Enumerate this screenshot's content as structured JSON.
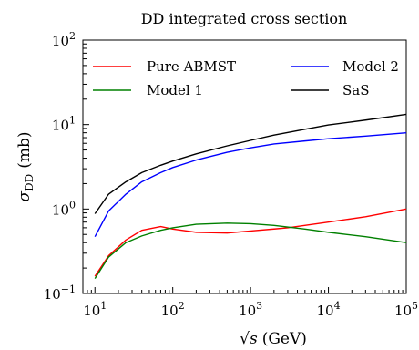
{
  "chart_data": {
    "type": "line",
    "title": "DD integrated cross section",
    "xlabel_base": "√s",
    "xlabel_unit": "(GeV)",
    "ylabel_symbol": "σ",
    "ylabel_sub": "DD",
    "ylabel_unit": "(mb)",
    "xscale": "log",
    "yscale": "log",
    "xlim": [
      7,
      100000
    ],
    "ylim": [
      0.1,
      100
    ],
    "xticks": [
      {
        "value": 10,
        "base": "10",
        "exp": "1"
      },
      {
        "value": 100,
        "base": "10",
        "exp": "2"
      },
      {
        "value": 1000,
        "base": "10",
        "exp": "3"
      },
      {
        "value": 10000,
        "base": "10",
        "exp": "4"
      },
      {
        "value": 100000,
        "base": "10",
        "exp": "5"
      }
    ],
    "yticks": [
      {
        "value": 0.1,
        "base": "10",
        "exp": "−1"
      },
      {
        "value": 1,
        "base": "10",
        "exp": "0"
      },
      {
        "value": 10,
        "base": "10",
        "exp": "1"
      },
      {
        "value": 100,
        "base": "10",
        "exp": "2"
      }
    ],
    "grid": false,
    "legend_position": "top",
    "legend_columns": 2,
    "series": [
      {
        "name": "Pure ABMST",
        "color": "#ff0000",
        "x": [
          10,
          15,
          25,
          40,
          70,
          100,
          200,
          500,
          1000,
          2000,
          3000,
          10000,
          30000,
          100000
        ],
        "y": [
          0.16,
          0.28,
          0.43,
          0.56,
          0.62,
          0.58,
          0.53,
          0.52,
          0.55,
          0.58,
          0.6,
          0.7,
          0.81,
          1.0
        ]
      },
      {
        "name": "Model 1",
        "color": "#008000",
        "x": [
          10,
          15,
          25,
          40,
          70,
          100,
          200,
          500,
          1000,
          2000,
          5000,
          10000,
          30000,
          100000
        ],
        "y": [
          0.15,
          0.27,
          0.4,
          0.48,
          0.56,
          0.6,
          0.66,
          0.68,
          0.67,
          0.64,
          0.58,
          0.53,
          0.47,
          0.4
        ]
      },
      {
        "name": "Model 2",
        "color": "#0000ff",
        "x": [
          10,
          15,
          25,
          40,
          70,
          100,
          200,
          500,
          1000,
          2000,
          5000,
          10000,
          30000,
          100000
        ],
        "y": [
          0.47,
          0.95,
          1.5,
          2.1,
          2.7,
          3.1,
          3.8,
          4.7,
          5.3,
          5.9,
          6.4,
          6.8,
          7.3,
          8.0
        ]
      },
      {
        "name": "SaS",
        "color": "#000000",
        "x": [
          10,
          15,
          25,
          40,
          70,
          100,
          200,
          500,
          1000,
          2000,
          5000,
          10000,
          30000,
          100000
        ],
        "y": [
          0.88,
          1.5,
          2.1,
          2.7,
          3.3,
          3.7,
          4.5,
          5.6,
          6.5,
          7.5,
          8.8,
          9.9,
          11.3,
          13.2
        ]
      }
    ]
  }
}
